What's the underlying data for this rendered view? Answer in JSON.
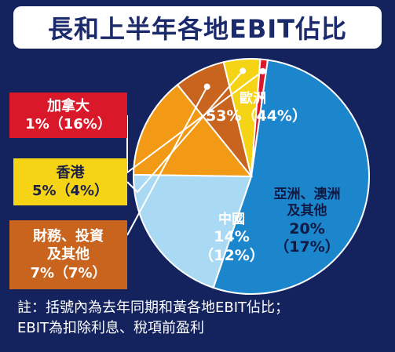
{
  "title": "長和上半年各地EBIT佔比",
  "chart_data": {
    "type": "pie",
    "title": "長和上半年各地EBIT佔比",
    "series": [
      {
        "name": "歐洲",
        "value": 53,
        "prior": 44,
        "pct_text": "53%（44%）",
        "color": "#1c86cc"
      },
      {
        "name": "亞洲、澳洲及其他",
        "value": 20,
        "prior": 17,
        "pct_text": "20%",
        "prior_text": "（17%）",
        "color": "#a9d9f3"
      },
      {
        "name": "中國",
        "value": 14,
        "prior": 12,
        "pct_text": "14%",
        "prior_text": "（12%）",
        "color": "#f29a16"
      },
      {
        "name": "財務、投資及其他",
        "value": 7,
        "prior": 7,
        "pct_text": "7%（7%）",
        "color": "#c8641e"
      },
      {
        "name": "香港",
        "value": 5,
        "prior": 4,
        "pct_text": "5%（4%）",
        "color": "#f5d315"
      },
      {
        "name": "加拿大",
        "value": 1,
        "prior": 16,
        "pct_text": "1%（16%）",
        "color": "#d9182a"
      }
    ]
  },
  "labels": {
    "europe": {
      "name": "歐洲",
      "pct": "53%（44%）"
    },
    "asia": {
      "line1": "亞洲、澳洲",
      "line2": "及其他",
      "pct": "20%",
      "prior": "（17%）"
    },
    "china": {
      "name": "中國",
      "pct": "14%",
      "prior": "（12%）"
    },
    "canada": {
      "name": "加拿大",
      "pct": "1%（16%）"
    },
    "hongkong": {
      "name": "香港",
      "pct": "5%（4%）"
    },
    "finance": {
      "line1": "財務、投資",
      "line2": "及其他",
      "pct": "7%（7%）"
    }
  },
  "note": {
    "line1": "註：括號內為去年同期和黃各地EBIT佔比；",
    "line2": "EBIT為扣除利息、稅項前盈利"
  }
}
